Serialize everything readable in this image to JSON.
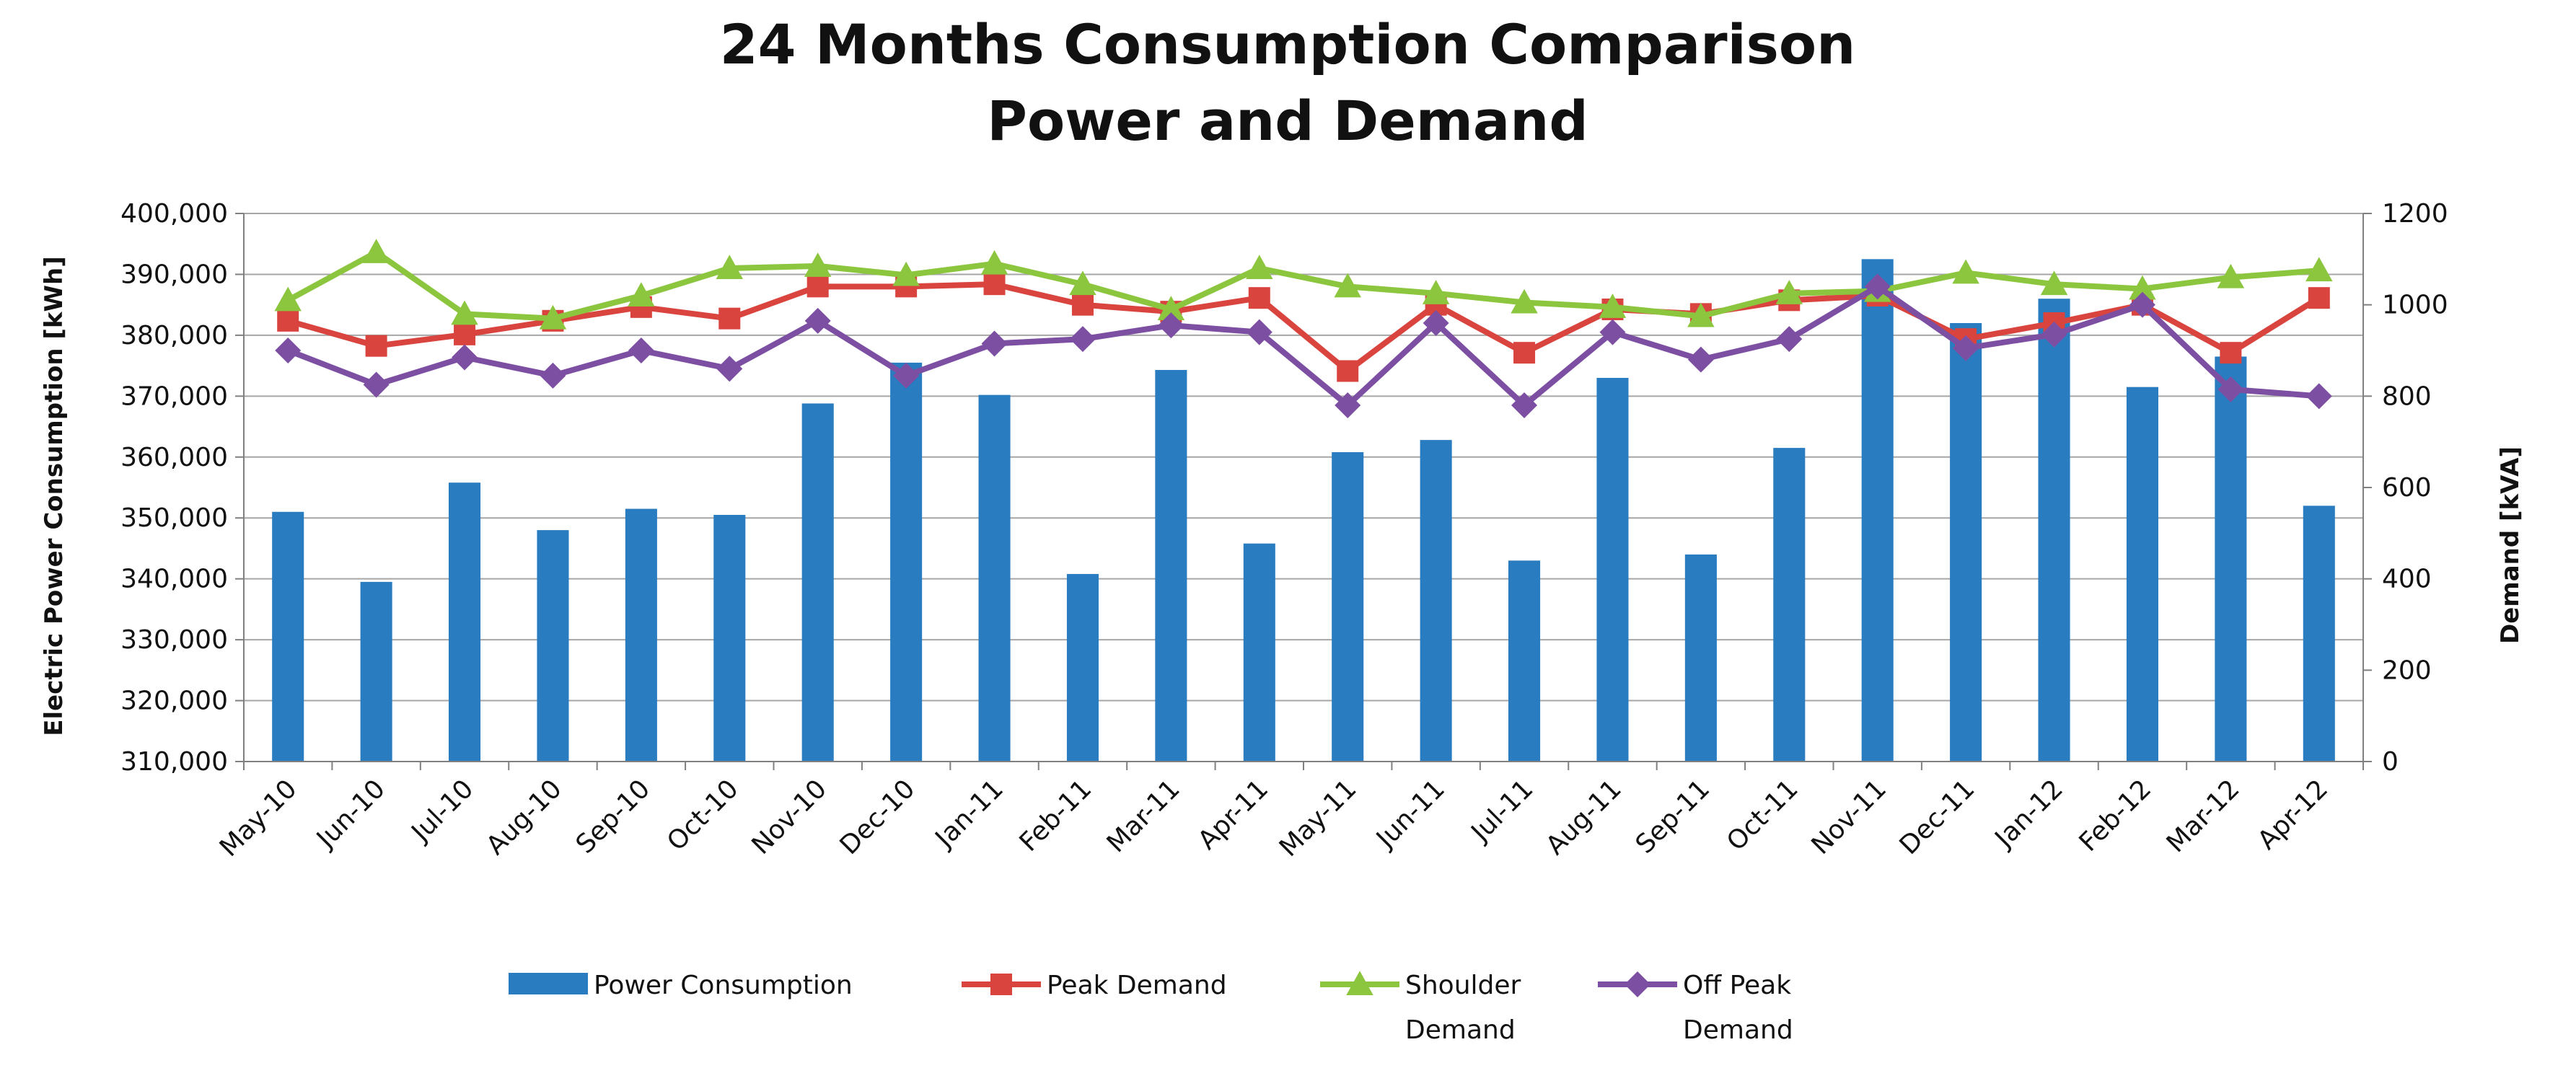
{
  "chart_data": {
    "type": "bar",
    "title": [
      "24 Months Consumption Comparison",
      "Power and Demand"
    ],
    "categories": [
      "May-10",
      "Jun-10",
      "Jul-10",
      "Aug-10",
      "Sep-10",
      "Oct-10",
      "Nov-10",
      "Dec-10",
      "Jan-11",
      "Feb-11",
      "Mar-11",
      "Apr-11",
      "May-11",
      "Jun-11",
      "Jul-11",
      "Aug-11",
      "Sep-11",
      "Oct-11",
      "Nov-11",
      "Dec-11",
      "Jan-12",
      "Feb-12",
      "Mar-12",
      "Apr-12"
    ],
    "ylabel": "Electric Power Consumption  [kWh]",
    "y2label": "Demand [kVA]",
    "ylim": [
      310000,
      400000
    ],
    "y2lim": [
      0,
      1200
    ],
    "y_ticks": [
      "310,000",
      "320,000",
      "330,000",
      "340,000",
      "350,000",
      "360,000",
      "370,000",
      "380,000",
      "390,000",
      "400,000"
    ],
    "y2_ticks": [
      "0",
      "200",
      "400",
      "600",
      "800",
      "1000",
      "1200"
    ],
    "grid": true,
    "legend_position": "bottom",
    "series": [
      {
        "name": "Power Consumption",
        "kind": "bar",
        "axis": "left",
        "color": "#2A7CC0",
        "values": [
          351000,
          339500,
          355800,
          348000,
          351500,
          350500,
          368800,
          375500,
          370200,
          340800,
          374300,
          345800,
          360800,
          362800,
          343000,
          373000,
          344000,
          361500,
          392500,
          382000,
          386000,
          371500,
          376500,
          352000
        ]
      },
      {
        "name": "Peak Demand",
        "kind": "line",
        "marker": "square",
        "axis": "right",
        "color": "#D9443F",
        "values": [
          965,
          910,
          935,
          965,
          995,
          970,
          1040,
          1040,
          1045,
          1000,
          985,
          1015,
          855,
          1000,
          895,
          990,
          980,
          1010,
          1020,
          925,
          960,
          1000,
          895,
          1015
        ]
      },
      {
        "name": "Shoulder Demand",
        "kind": "line",
        "marker": "triangle",
        "axis": "right",
        "color": "#8CC63F",
        "values": [
          1010,
          1115,
          980,
          970,
          1020,
          1080,
          1085,
          1065,
          1090,
          1045,
          990,
          1080,
          1040,
          1025,
          1005,
          995,
          975,
          1025,
          1030,
          1070,
          1045,
          1035,
          1060,
          1075
        ]
      },
      {
        "name": "Off Peak Demand",
        "kind": "line",
        "marker": "diamond",
        "axis": "right",
        "color": "#7D4FA3",
        "values": [
          900,
          825,
          885,
          845,
          900,
          860,
          965,
          845,
          915,
          925,
          955,
          940,
          780,
          960,
          780,
          940,
          880,
          925,
          1040,
          905,
          935,
          1000,
          815,
          800
        ]
      }
    ],
    "legend": [
      {
        "label": "Power Consumption",
        "symbol": "bar"
      },
      {
        "label": "Peak Demand",
        "symbol": "square"
      },
      {
        "label": [
          "Shoulder",
          "Demand"
        ],
        "symbol": "triangle"
      },
      {
        "label": [
          "Off Peak",
          "Demand"
        ],
        "symbol": "diamond"
      }
    ]
  }
}
